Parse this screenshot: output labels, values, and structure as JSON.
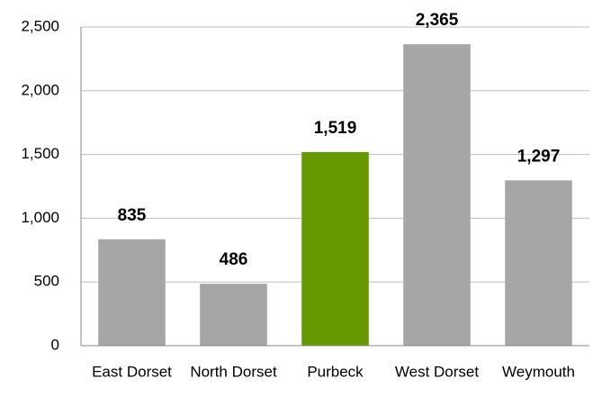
{
  "chart_data": {
    "type": "bar",
    "categories": [
      "East Dorset",
      "North Dorset",
      "Purbeck",
      "West Dorset",
      "Weymouth"
    ],
    "values": [
      835,
      486,
      1519,
      2365,
      1297
    ],
    "value_labels": [
      "835",
      "486",
      "1,519",
      "2,365",
      "1,297"
    ],
    "colors": [
      "#a6a6a6",
      "#a6a6a6",
      "#669900",
      "#a6a6a6",
      "#a6a6a6"
    ],
    "ylim": [
      0,
      2500
    ],
    "yticks": [
      0,
      500,
      {
        "value": 1000,
        "label": "1,000"
      },
      {
        "value": 1500,
        "label": "1,500"
      },
      {
        "value": 2000,
        "label": "2,000"
      },
      {
        "value": 2500,
        "label": "2,500"
      }
    ],
    "grid": true
  }
}
